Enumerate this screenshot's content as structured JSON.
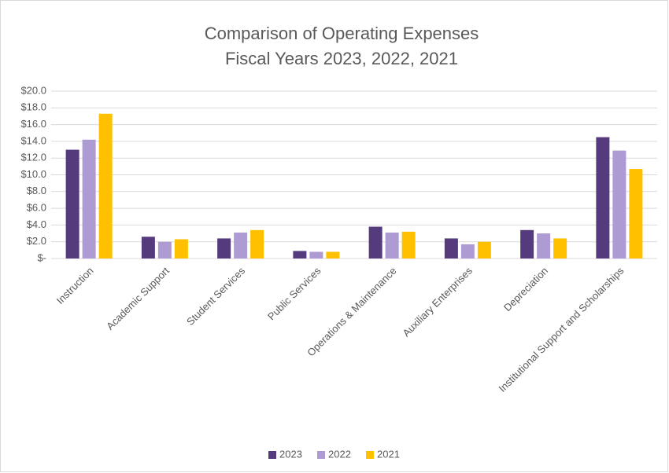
{
  "chart_data": {
    "type": "bar",
    "title": "Comparison of Operating Expenses",
    "subtitle": "Fiscal Years 2023, 2022, 2021",
    "categories": [
      "Instruction",
      "Academic Support",
      "Student Services",
      "Public Services",
      "Operations & Maintenance",
      "Auxiliary Enterprises",
      "Depreciation",
      "Institutional Support and Scholarships"
    ],
    "series": [
      {
        "name": "2023",
        "color": "#553a7d",
        "values": [
          13.0,
          2.6,
          2.4,
          0.9,
          3.8,
          2.4,
          3.4,
          14.5
        ]
      },
      {
        "name": "2022",
        "color": "#ae9bd3",
        "values": [
          14.2,
          2.0,
          3.1,
          0.8,
          3.1,
          1.7,
          3.0,
          12.9
        ]
      },
      {
        "name": "2021",
        "color": "#ffc000",
        "values": [
          17.3,
          2.3,
          3.4,
          0.8,
          3.2,
          2.0,
          2.4,
          10.7
        ]
      }
    ],
    "ylim": [
      0,
      20
    ],
    "yticks": [
      {
        "value": 0,
        "label": "$-"
      },
      {
        "value": 2,
        "label": "$2.0"
      },
      {
        "value": 4,
        "label": "$4.0"
      },
      {
        "value": 6,
        "label": "$6.0"
      },
      {
        "value": 8,
        "label": "$8.0"
      },
      {
        "value": 10,
        "label": "$10.0"
      },
      {
        "value": 12,
        "label": "$12.0"
      },
      {
        "value": 14,
        "label": "$14.0"
      },
      {
        "value": 16,
        "label": "$16.0"
      },
      {
        "value": 18,
        "label": "$18.0"
      },
      {
        "value": 20,
        "label": "$20.0"
      }
    ],
    "grid": true,
    "legend": "bottom"
  }
}
